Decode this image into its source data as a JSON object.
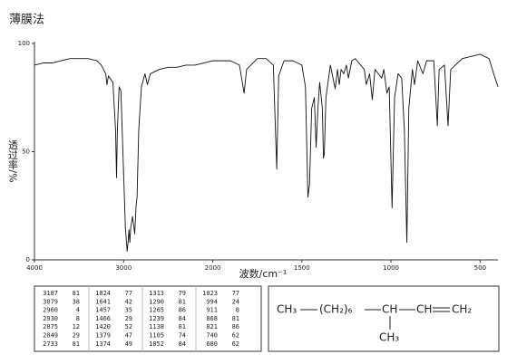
{
  "chart_data": {
    "type": "line",
    "title": "薄膜法",
    "x_label": "波数/cm⁻¹",
    "y_label": "透过率/%",
    "xlim": [
      4000,
      400
    ],
    "xticks": [
      4000,
      3000,
      2000,
      1500,
      1000,
      500
    ],
    "ylim": [
      0,
      100
    ],
    "yticks": [
      0,
      50,
      100
    ],
    "color": "#111111",
    "x": [
      4000,
      3900,
      3800,
      3700,
      3600,
      3500,
      3400,
      3300,
      3250,
      3200,
      3187,
      3170,
      3120,
      3090,
      3079,
      3070,
      3050,
      3030,
      3000,
      2980,
      2960,
      2950,
      2940,
      2930,
      2920,
      2900,
      2875,
      2860,
      2849,
      2830,
      2800,
      2760,
      2733,
      2700,
      2600,
      2500,
      2400,
      2300,
      2200,
      2100,
      2000,
      1900,
      1850,
      1824,
      1810,
      1750,
      1700,
      1660,
      1641,
      1630,
      1600,
      1550,
      1500,
      1480,
      1466,
      1457,
      1445,
      1430,
      1420,
      1410,
      1400,
      1385,
      1379,
      1374,
      1365,
      1340,
      1313,
      1300,
      1290,
      1280,
      1265,
      1250,
      1239,
      1220,
      1200,
      1150,
      1138,
      1120,
      1105,
      1090,
      1052,
      1040,
      1023,
      1010,
      994,
      980,
      960,
      940,
      925,
      911,
      900,
      880,
      868,
      850,
      821,
      800,
      760,
      740,
      730,
      700,
      680,
      665,
      600,
      550,
      500,
      450,
      420,
      400
    ],
    "values": [
      90,
      91,
      91,
      92,
      93,
      93,
      93,
      92,
      90,
      86,
      81,
      85,
      82,
      60,
      38,
      60,
      80,
      78,
      40,
      15,
      4,
      8,
      14,
      8,
      15,
      20,
      12,
      25,
      29,
      60,
      80,
      86,
      81,
      86,
      88,
      89,
      89,
      90,
      90,
      91,
      92,
      92,
      90,
      77,
      88,
      93,
      93,
      90,
      42,
      85,
      92,
      92,
      90,
      80,
      29,
      35,
      70,
      75,
      52,
      70,
      82,
      70,
      47,
      49,
      75,
      90,
      79,
      88,
      81,
      88,
      86,
      90,
      84,
      92,
      93,
      88,
      81,
      86,
      74,
      88,
      84,
      88,
      77,
      80,
      24,
      75,
      86,
      84,
      60,
      8,
      70,
      88,
      81,
      92,
      86,
      92,
      92,
      62,
      88,
      90,
      62,
      88,
      93,
      94,
      95,
      93,
      85,
      80
    ]
  },
  "peak_table": {
    "rows": [
      [
        3187,
        81,
        1824,
        77,
        1313,
        79,
        1023,
        77
      ],
      [
        3079,
        38,
        1641,
        42,
        1290,
        81,
        994,
        24
      ],
      [
        2960,
        4,
        1457,
        35,
        1265,
        86,
        911,
        8
      ],
      [
        2930,
        8,
        1466,
        29,
        1239,
        84,
        868,
        81
      ],
      [
        2875,
        12,
        1420,
        52,
        1138,
        81,
        821,
        86
      ],
      [
        2849,
        29,
        1379,
        47,
        1105,
        74,
        740,
        62
      ],
      [
        2733,
        81,
        1374,
        49,
        1052,
        84,
        680,
        62
      ]
    ]
  },
  "structure": {
    "groups": [
      "CH₃",
      "(CH₂)₆",
      "CH",
      "CH",
      "CH₂",
      "CH₃"
    ]
  }
}
